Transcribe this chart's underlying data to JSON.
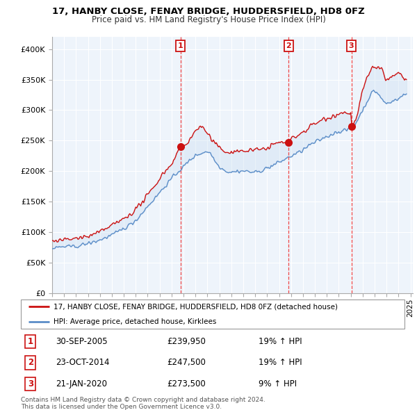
{
  "title1": "17, HANBY CLOSE, FENAY BRIDGE, HUDDERSFIELD, HD8 0FZ",
  "title2": "Price paid vs. HM Land Registry's House Price Index (HPI)",
  "ylim": [
    0,
    420000
  ],
  "xlim_start": 1995.0,
  "xlim_end": 2025.2,
  "yticks": [
    0,
    50000,
    100000,
    150000,
    200000,
    250000,
    300000,
    350000,
    400000
  ],
  "ytick_labels": [
    "£0",
    "£50K",
    "£100K",
    "£150K",
    "£200K",
    "£250K",
    "£300K",
    "£350K",
    "£400K"
  ],
  "xticks": [
    1995,
    1996,
    1997,
    1998,
    1999,
    2000,
    2001,
    2002,
    2003,
    2004,
    2005,
    2006,
    2007,
    2008,
    2009,
    2010,
    2011,
    2012,
    2013,
    2014,
    2015,
    2016,
    2017,
    2018,
    2019,
    2020,
    2021,
    2022,
    2023,
    2024,
    2025
  ],
  "sale_dates": [
    2005.75,
    2014.81,
    2020.055
  ],
  "sale_prices": [
    239950,
    247500,
    273500
  ],
  "sale_labels": [
    "1",
    "2",
    "3"
  ],
  "sale_pct": [
    "19% ↑ HPI",
    "19% ↑ HPI",
    "9% ↑ HPI"
  ],
  "sale_date_strs": [
    "30-SEP-2005",
    "23-OCT-2014",
    "21-JAN-2020"
  ],
  "hpi_color": "#5b8dc8",
  "price_color": "#cc1111",
  "vline_color": "#ee3333",
  "fill_color": "#c8ddf0",
  "bg_color": "#eef4fb",
  "grid_color": "#ffffff",
  "legend_label_price": "17, HANBY CLOSE, FENAY BRIDGE, HUDDERSFIELD, HD8 0FZ (detached house)",
  "legend_label_hpi": "HPI: Average price, detached house, Kirklees",
  "footnote": "Contains HM Land Registry data © Crown copyright and database right 2024.\nThis data is licensed under the Open Government Licence v3.0."
}
